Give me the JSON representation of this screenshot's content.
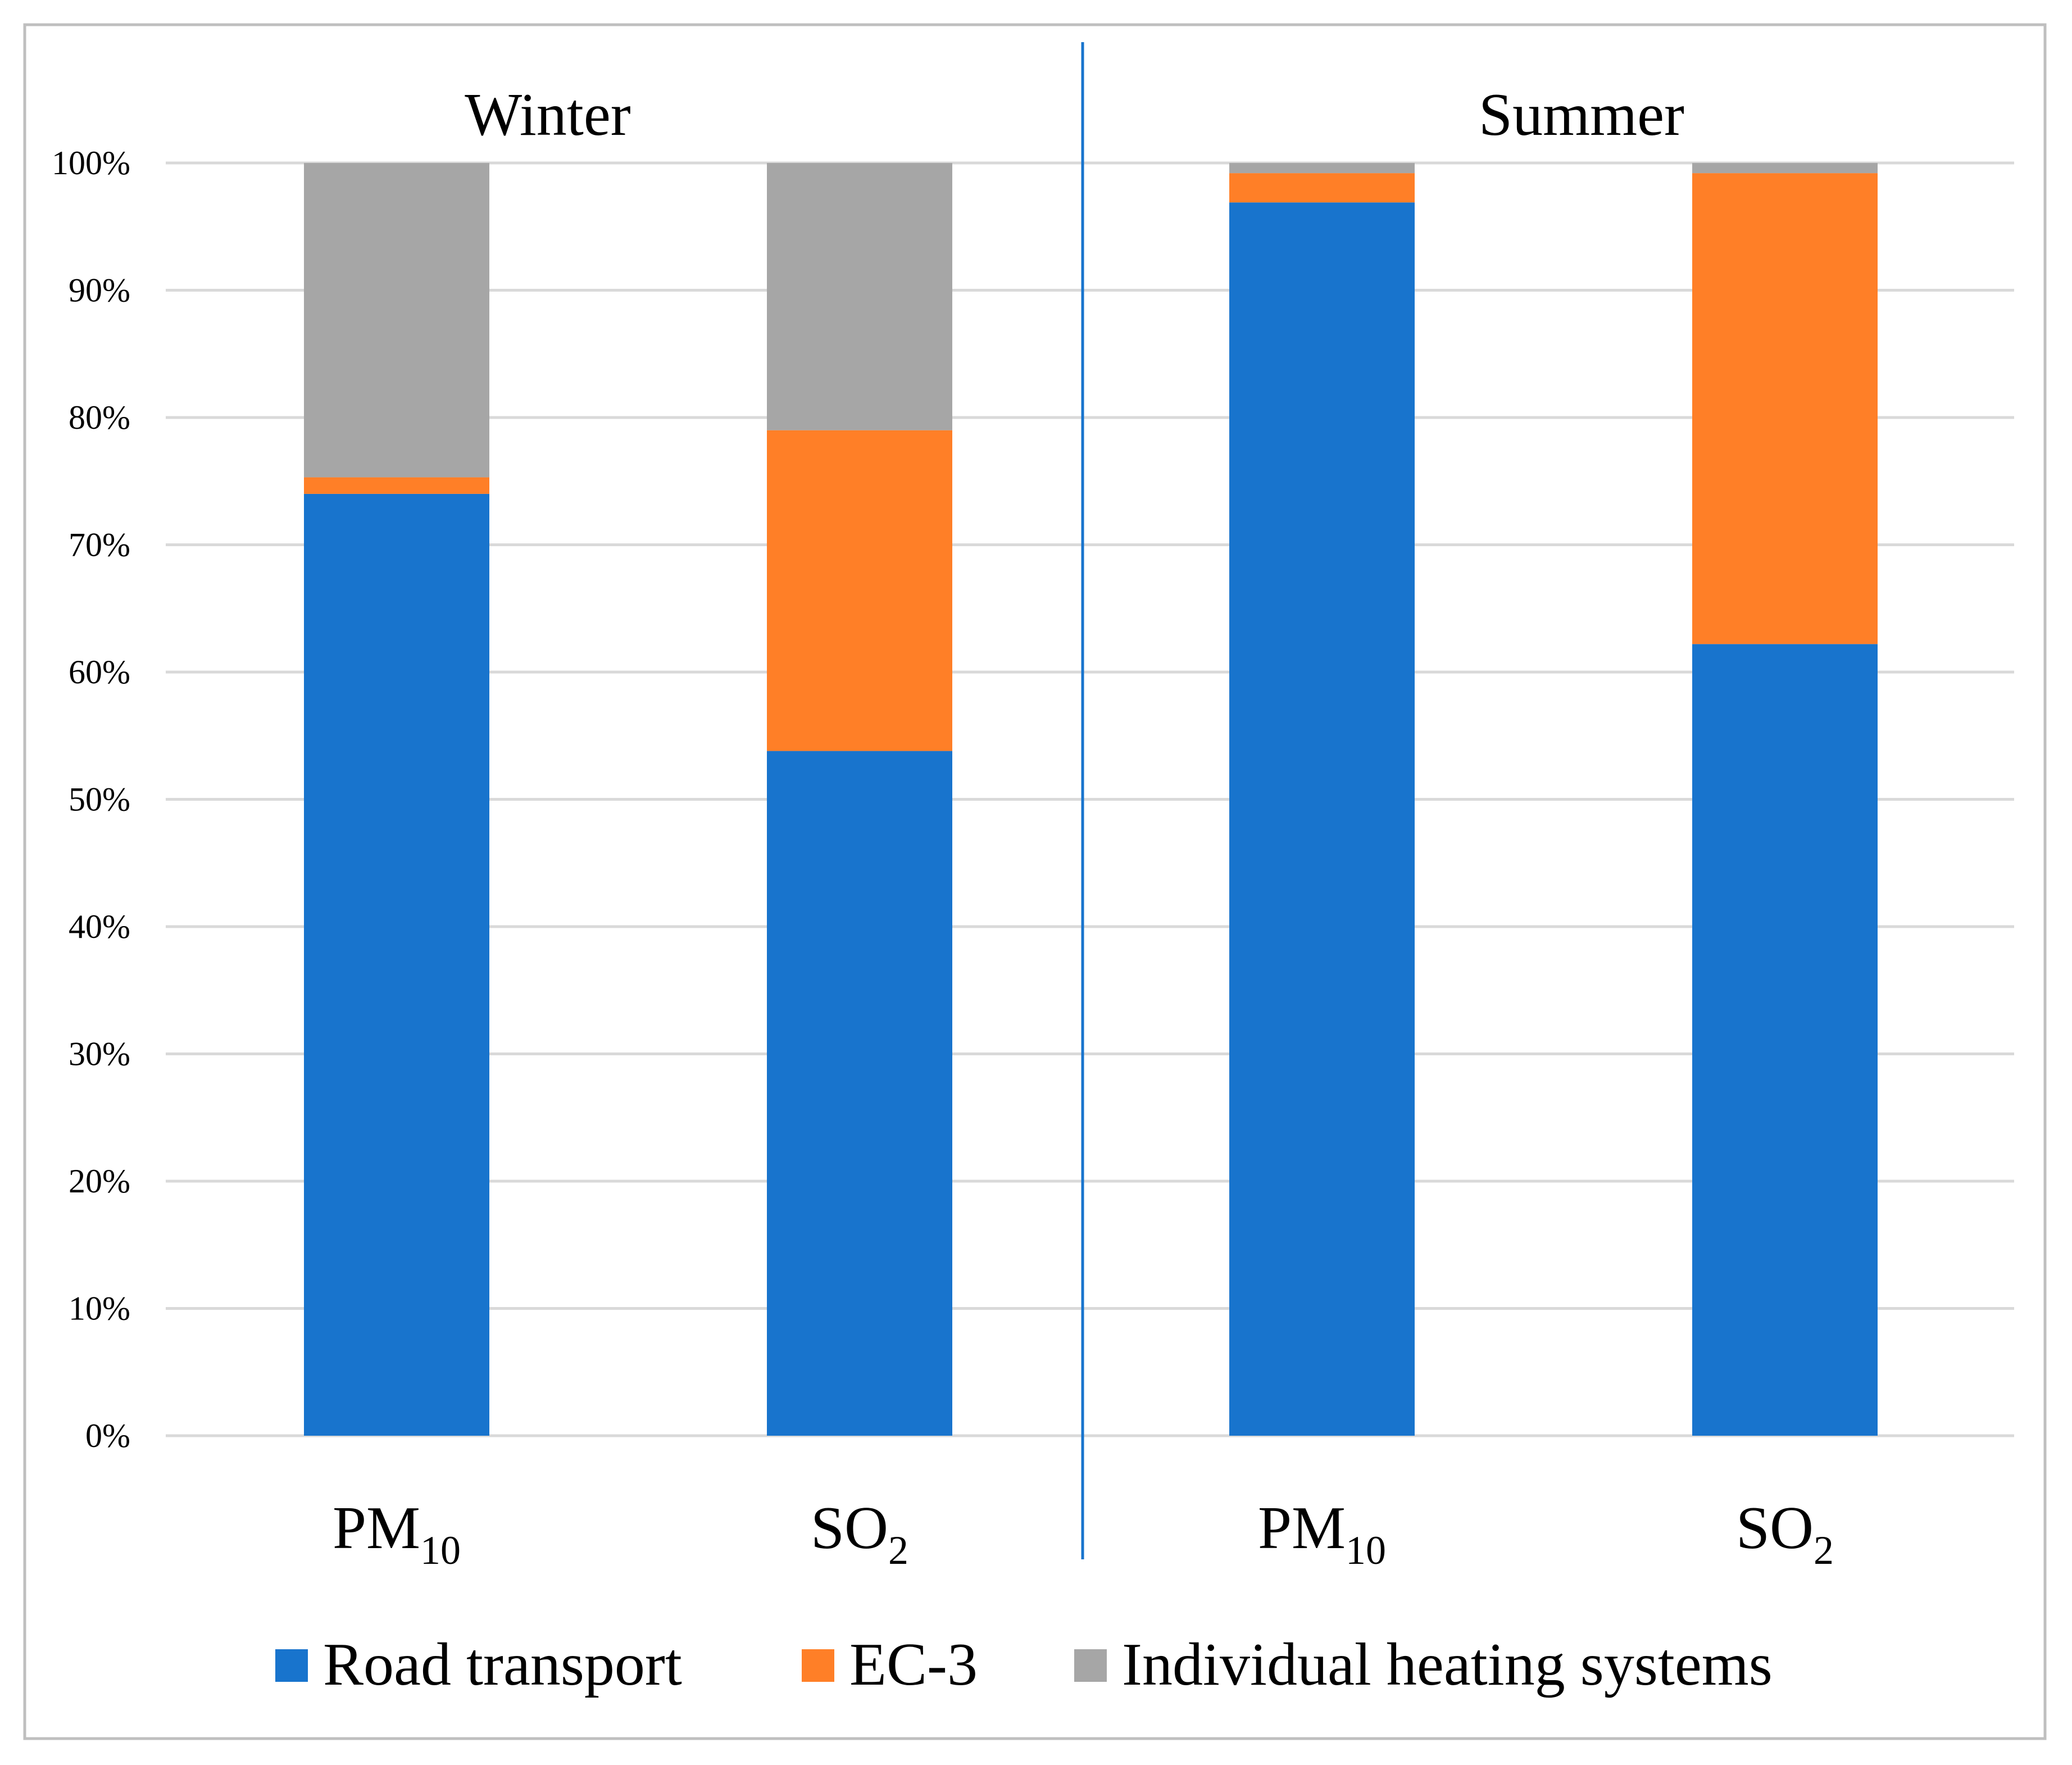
{
  "chart_data": {
    "type": "bar",
    "stacked": true,
    "y_axis": {
      "ylim": [
        0,
        100
      ],
      "unit": "%",
      "ticks": [
        0,
        10,
        20,
        30,
        40,
        50,
        60,
        70,
        80,
        90,
        100
      ],
      "tick_labels": [
        "0%",
        "10%",
        "20%",
        "30%",
        "40%",
        "50%",
        "60%",
        "70%",
        "80%",
        "90%",
        "100%"
      ]
    },
    "grid": true,
    "legend_position": "bottom",
    "panels": [
      {
        "title": "Winter",
        "categories": [
          {
            "base": "PM",
            "sub": "10"
          },
          {
            "base": "SO",
            "sub": "2"
          }
        ]
      },
      {
        "title": "Summer",
        "categories": [
          {
            "base": "PM",
            "sub": "10"
          },
          {
            "base": "SO",
            "sub": "2"
          }
        ]
      }
    ],
    "series": [
      {
        "name": "Road transport",
        "color": "#1874CD",
        "values": [
          74,
          53.8,
          96.9,
          62.2
        ]
      },
      {
        "name": "EC-3",
        "color": "#FF7F27",
        "values": [
          1.3,
          25.2,
          2.3,
          37
        ]
      },
      {
        "name": "Individual heating systems",
        "color": "#A6A6A6",
        "values": [
          24.7,
          21,
          0.8,
          0.8
        ]
      }
    ]
  },
  "colors": {
    "gridline": "#D9D9D9",
    "divider": "#1874CD",
    "frame": "#BFBFBF"
  }
}
